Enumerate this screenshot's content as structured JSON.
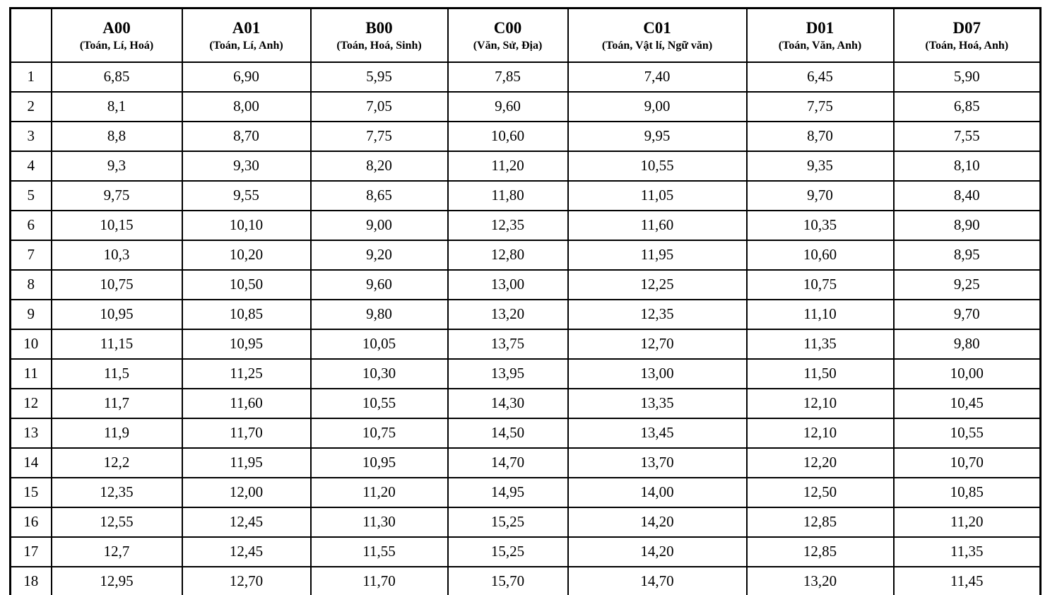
{
  "table": {
    "columns": [
      {
        "code": "A00",
        "subjects": "(Toán, Lí, Hoá)"
      },
      {
        "code": "A01",
        "subjects": "(Toán, Lí, Anh)"
      },
      {
        "code": "B00",
        "subjects": "(Toán, Hoá, Sinh)"
      },
      {
        "code": "C00",
        "subjects": "(Văn, Sử, Địa)"
      },
      {
        "code": "C01",
        "subjects": "(Toán, Vật lí, Ngữ văn)"
      },
      {
        "code": "D01",
        "subjects": "(Toán, Văn, Anh)"
      },
      {
        "code": "D07",
        "subjects": "(Toán, Hoá, Anh)"
      }
    ],
    "rows": [
      {
        "index": "1",
        "values": [
          "6,85",
          "6,90",
          "5,95",
          "7,85",
          "7,40",
          "6,45",
          "5,90"
        ]
      },
      {
        "index": "2",
        "values": [
          "8,1",
          "8,00",
          "7,05",
          "9,60",
          "9,00",
          "7,75",
          "6,85"
        ]
      },
      {
        "index": "3",
        "values": [
          "8,8",
          "8,70",
          "7,75",
          "10,60",
          "9,95",
          "8,70",
          "7,55"
        ]
      },
      {
        "index": "4",
        "values": [
          "9,3",
          "9,30",
          "8,20",
          "11,20",
          "10,55",
          "9,35",
          "8,10"
        ]
      },
      {
        "index": "5",
        "values": [
          "9,75",
          "9,55",
          "8,65",
          "11,80",
          "11,05",
          "9,70",
          "8,40"
        ]
      },
      {
        "index": "6",
        "values": [
          "10,15",
          "10,10",
          "9,00",
          "12,35",
          "11,60",
          "10,35",
          "8,90"
        ]
      },
      {
        "index": "7",
        "values": [
          "10,3",
          "10,20",
          "9,20",
          "12,80",
          "11,95",
          "10,60",
          "8,95"
        ]
      },
      {
        "index": "8",
        "values": [
          "10,75",
          "10,50",
          "9,60",
          "13,00",
          "12,25",
          "10,75",
          "9,25"
        ]
      },
      {
        "index": "9",
        "values": [
          "10,95",
          "10,85",
          "9,80",
          "13,20",
          "12,35",
          "11,10",
          "9,70"
        ]
      },
      {
        "index": "10",
        "values": [
          "11,15",
          "10,95",
          "10,05",
          "13,75",
          "12,70",
          "11,35",
          "9,80"
        ]
      },
      {
        "index": "11",
        "values": [
          "11,5",
          "11,25",
          "10,30",
          "13,95",
          "13,00",
          "11,50",
          "10,00"
        ]
      },
      {
        "index": "12",
        "values": [
          "11,7",
          "11,60",
          "10,55",
          "14,30",
          "13,35",
          "12,10",
          "10,45"
        ]
      },
      {
        "index": "13",
        "values": [
          "11,9",
          "11,70",
          "10,75",
          "14,50",
          "13,45",
          "12,10",
          "10,55"
        ]
      },
      {
        "index": "14",
        "values": [
          "12,2",
          "11,95",
          "10,95",
          "14,70",
          "13,70",
          "12,20",
          "10,70"
        ]
      },
      {
        "index": "15",
        "values": [
          "12,35",
          "12,00",
          "11,20",
          "14,95",
          "14,00",
          "12,50",
          "10,85"
        ]
      },
      {
        "index": "16",
        "values": [
          "12,55",
          "12,45",
          "11,30",
          "15,25",
          "14,20",
          "12,85",
          "11,20"
        ]
      },
      {
        "index": "17",
        "values": [
          "12,7",
          "12,45",
          "11,55",
          "15,25",
          "14,20",
          "12,85",
          "11,35"
        ]
      },
      {
        "index": "18",
        "values": [
          "12,95",
          "12,70",
          "11,70",
          "15,70",
          "14,70",
          "13,20",
          "11,45"
        ]
      }
    ]
  },
  "colors": {
    "text": "#000000",
    "border": "#000000",
    "background": "#ffffff"
  }
}
